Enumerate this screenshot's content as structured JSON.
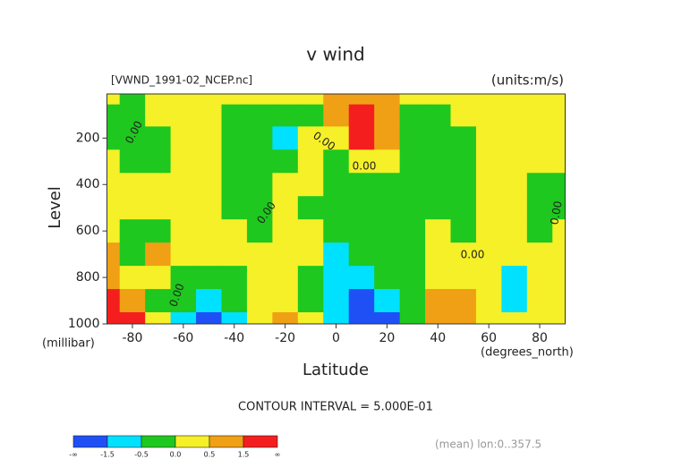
{
  "chart_data": {
    "type": "contour",
    "title": "v wind",
    "subtitle": "[VWND_1991-02_NCEP.nc]",
    "units_label": "(units:m/s)",
    "xlabel": "Latitude",
    "xunit_label": "(degrees_north)",
    "ylabel": "Level",
    "yunit_label": "(millibar)",
    "footer": "CONTOUR INTERVAL = 5.000E-01",
    "note": "(mean) lon:0..357.5",
    "contour_label": "0.00",
    "xlim": [
      -90,
      90
    ],
    "xticks": [
      -80,
      -60,
      -40,
      -20,
      0,
      20,
      40,
      60,
      80
    ],
    "ylim": [
      1000,
      10
    ],
    "yticks": [
      200,
      400,
      600,
      800,
      1000
    ],
    "x": [
      -90,
      -80,
      -70,
      -60,
      -50,
      -40,
      -30,
      -20,
      -10,
      0,
      10,
      20,
      30,
      40,
      50,
      60,
      70,
      80,
      90
    ],
    "y": [
      10,
      100,
      200,
      300,
      400,
      500,
      600,
      700,
      800,
      900,
      1000
    ],
    "z": [
      [
        0.25,
        -0.25,
        0.25,
        0.25,
        0.25,
        0.25,
        0.25,
        0.25,
        0.25,
        0.8,
        0.8,
        0.8,
        0.25,
        0.25,
        0.25,
        0.25,
        0.25,
        0.25,
        0.25
      ],
      [
        -0.25,
        -0.25,
        0.25,
        0.25,
        0.25,
        -0.25,
        -0.25,
        -0.25,
        -0.25,
        0.8,
        2,
        0.8,
        -0.25,
        -0.25,
        0.25,
        0.25,
        0.25,
        0.25,
        0.25
      ],
      [
        -0.25,
        -0.25,
        -0.25,
        0.25,
        0.25,
        -0.25,
        -0.25,
        -0.8,
        0.25,
        0.25,
        2,
        0.8,
        -0.25,
        -0.25,
        -0.25,
        0.25,
        0.25,
        0.25,
        0.25
      ],
      [
        0.25,
        -0.25,
        -0.25,
        0.25,
        0.25,
        -0.25,
        -0.25,
        -0.25,
        0.25,
        -0.25,
        0.25,
        0.25,
        -0.25,
        -0.25,
        -0.25,
        0.25,
        0.25,
        0.25,
        0.25
      ],
      [
        0.25,
        0.25,
        0.25,
        0.25,
        0.25,
        -0.25,
        -0.25,
        0.25,
        0.25,
        -0.25,
        -0.25,
        -0.25,
        -0.25,
        -0.25,
        -0.25,
        0.25,
        0.25,
        -0.25,
        -0.25
      ],
      [
        0.25,
        0.25,
        0.25,
        0.25,
        0.25,
        -0.25,
        -0.25,
        0.25,
        -0.25,
        -0.25,
        -0.25,
        -0.25,
        -0.25,
        -0.25,
        -0.25,
        0.25,
        0.25,
        -0.25,
        -0.25
      ],
      [
        0.25,
        -0.25,
        -0.25,
        0.25,
        0.25,
        0.25,
        -0.25,
        0.25,
        0.25,
        -0.25,
        -0.25,
        -0.25,
        -0.25,
        0.25,
        -0.25,
        0.25,
        0.25,
        -0.25,
        0.25
      ],
      [
        0.8,
        -0.25,
        0.8,
        0.25,
        0.25,
        0.25,
        0.25,
        0.25,
        0.25,
        -0.8,
        -0.25,
        -0.25,
        -0.25,
        0.25,
        0.25,
        0.25,
        0.25,
        0.25,
        0.25
      ],
      [
        0.8,
        0.25,
        0.25,
        -0.25,
        -0.25,
        -0.25,
        0.25,
        0.25,
        -0.25,
        -0.8,
        -0.8,
        -0.25,
        -0.25,
        0.25,
        0.25,
        0.25,
        -0.8,
        0.25,
        0.25
      ],
      [
        2,
        0.8,
        -0.25,
        -0.25,
        -0.8,
        -0.25,
        0.25,
        0.25,
        -0.25,
        -0.8,
        -2,
        -0.8,
        -0.25,
        0.8,
        0.8,
        0.25,
        -0.8,
        0.25,
        0.25
      ],
      [
        2,
        2,
        0.25,
        -0.8,
        -2,
        -0.8,
        0.25,
        0.8,
        0.25,
        -0.8,
        -2,
        -2,
        -0.25,
        0.8,
        0.8,
        0.25,
        0.25,
        0.25,
        0.25
      ]
    ],
    "colorbar": {
      "levels": [
        -1.5,
        -0.5,
        {
          "value": 0,
          "label": "0.0"
        },
        0.5,
        1.5
      ],
      "ends": [
        "-∞",
        "∞"
      ],
      "colors": [
        "#1e50f5",
        "#00e1ff",
        "#1ec81e",
        "#f5f028",
        "#f0a014",
        "#f51e1e"
      ]
    }
  }
}
